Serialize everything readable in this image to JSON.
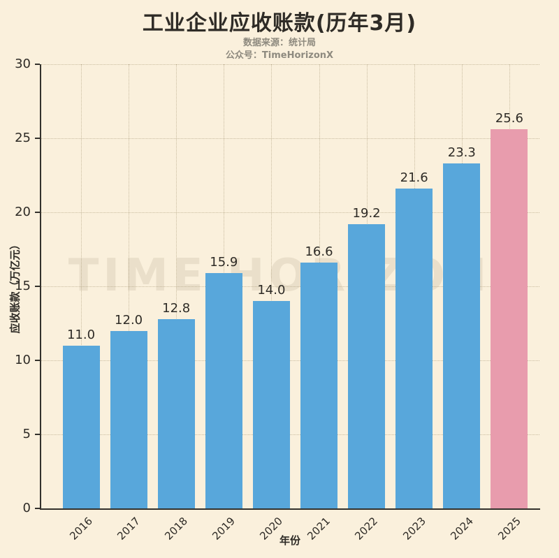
{
  "header": {
    "title": "工业企业应收账款(历年3月)",
    "subtitle_line1": "数据来源：统计局",
    "subtitle_line2": "公众号：TimeHorizonX"
  },
  "watermark": "TIME HORIZON",
  "chart_data": {
    "type": "bar",
    "title": "工业企业应收账款(历年3月)",
    "categories": [
      "2016",
      "2017",
      "2018",
      "2019",
      "2020",
      "2021",
      "2022",
      "2023",
      "2024",
      "2025"
    ],
    "values": [
      11.0,
      12.0,
      12.8,
      15.9,
      14.0,
      16.6,
      19.2,
      21.6,
      23.3,
      25.6
    ],
    "value_labels": [
      "11.0",
      "12.0",
      "12.8",
      "15.9",
      "14.0",
      "16.6",
      "19.2",
      "21.6",
      "23.3",
      "25.6"
    ],
    "xlabel": "年份",
    "ylabel": "应收账款（万亿元）",
    "ylim": [
      0,
      30
    ],
    "yticks": [
      0,
      5,
      10,
      15,
      20,
      25,
      30
    ],
    "grid": "dotted",
    "legend": "none",
    "bar_color": "#58A7DB",
    "highlight_color": "#E89CAD",
    "highlight_index": 9
  },
  "colors": {
    "background": "#FAF0DC",
    "text": "#2E2B26",
    "subtitle_text": "#8E8A7F",
    "spine": "#33312C",
    "watermark": "rgba(125,108,74,0.12)"
  }
}
